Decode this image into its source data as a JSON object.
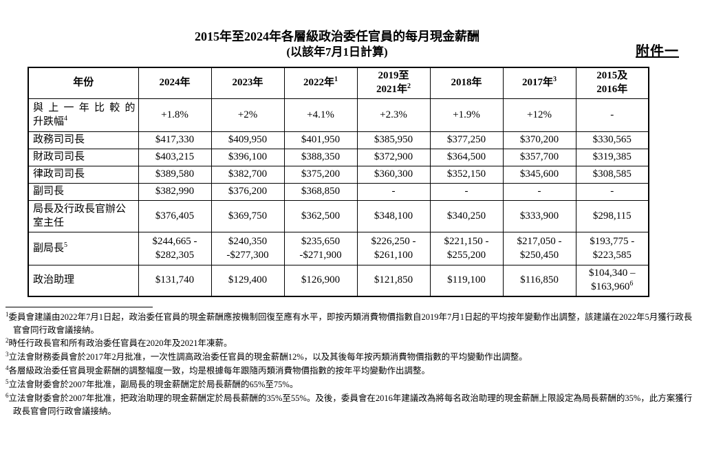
{
  "annex_label": "附件一",
  "title": {
    "line1": "2015年至2024年各層級政治委任官員的每月現金薪酬",
    "line2": "(以該年7月1日計算)"
  },
  "table": {
    "header": [
      {
        "text": "年份",
        "sup": ""
      },
      {
        "text": "2024年",
        "sup": ""
      },
      {
        "text": "2023年",
        "sup": ""
      },
      {
        "text": "2022年",
        "sup": "1"
      },
      {
        "text": "2019至\n2021年",
        "sup": "2"
      },
      {
        "text": "2018年",
        "sup": ""
      },
      {
        "text": "2017年",
        "sup": "3"
      },
      {
        "text": "2015及\n2016年",
        "sup": ""
      }
    ],
    "rows": [
      {
        "label": "與上一年比較的",
        "label2": "升跌幅",
        "label_sup": "4",
        "values": [
          {
            "text": "+1.8%",
            "sup": ""
          },
          {
            "text": "+2%",
            "sup": ""
          },
          {
            "text": "+4.1%",
            "sup": ""
          },
          {
            "text": "+2.3%",
            "sup": ""
          },
          {
            "text": "+1.9%",
            "sup": ""
          },
          {
            "text": "+12%",
            "sup": ""
          },
          {
            "text": "-",
            "sup": ""
          }
        ]
      },
      {
        "label": "政務司司長",
        "label_sup": "",
        "values": [
          {
            "text": "$417,330",
            "sup": ""
          },
          {
            "text": "$409,950",
            "sup": ""
          },
          {
            "text": "$401,950",
            "sup": ""
          },
          {
            "text": "$385,950",
            "sup": ""
          },
          {
            "text": "$377,250",
            "sup": ""
          },
          {
            "text": "$370,200",
            "sup": ""
          },
          {
            "text": "$330,565",
            "sup": ""
          }
        ]
      },
      {
        "label": "財政司司長",
        "label_sup": "",
        "values": [
          {
            "text": "$403,215",
            "sup": ""
          },
          {
            "text": "$396,100",
            "sup": ""
          },
          {
            "text": "$388,350",
            "sup": ""
          },
          {
            "text": "$372,900",
            "sup": ""
          },
          {
            "text": "$364,500",
            "sup": ""
          },
          {
            "text": "$357,700",
            "sup": ""
          },
          {
            "text": "$319,385",
            "sup": ""
          }
        ]
      },
      {
        "label": "律政司司長",
        "label_sup": "",
        "values": [
          {
            "text": "$389,580",
            "sup": ""
          },
          {
            "text": "$382,700",
            "sup": ""
          },
          {
            "text": "$375,200",
            "sup": ""
          },
          {
            "text": "$360,300",
            "sup": ""
          },
          {
            "text": "$352,150",
            "sup": ""
          },
          {
            "text": "$345,600",
            "sup": ""
          },
          {
            "text": "$308,585",
            "sup": ""
          }
        ]
      },
      {
        "label": "副司長",
        "label_sup": "",
        "values": [
          {
            "text": "$382,990",
            "sup": ""
          },
          {
            "text": "$376,200",
            "sup": ""
          },
          {
            "text": "$368,850",
            "sup": ""
          },
          {
            "text": "-",
            "sup": ""
          },
          {
            "text": "-",
            "sup": ""
          },
          {
            "text": "-",
            "sup": ""
          },
          {
            "text": "-",
            "sup": ""
          }
        ]
      },
      {
        "label": "局長及行政長官辦公室主任",
        "label_sup": "",
        "values": [
          {
            "text": "$376,405",
            "sup": ""
          },
          {
            "text": "$369,750",
            "sup": ""
          },
          {
            "text": "$362,500",
            "sup": ""
          },
          {
            "text": "$348,100",
            "sup": ""
          },
          {
            "text": "$340,250",
            "sup": ""
          },
          {
            "text": "$333,900",
            "sup": ""
          },
          {
            "text": "$298,115",
            "sup": ""
          }
        ]
      },
      {
        "label": "副局長",
        "label_sup": "5",
        "values": [
          {
            "text": "$244,665 -\n$282,305",
            "sup": ""
          },
          {
            "text": "$240,350\n-$277,300",
            "sup": ""
          },
          {
            "text": "$235,650\n-$271,900",
            "sup": ""
          },
          {
            "text": "$226,250 -\n$261,100",
            "sup": ""
          },
          {
            "text": "$221,150 -\n$255,200",
            "sup": ""
          },
          {
            "text": "$217,050 -\n$250,450",
            "sup": ""
          },
          {
            "text": "$193,775 -\n$223,585",
            "sup": ""
          }
        ]
      },
      {
        "label": "政治助理",
        "label_sup": "",
        "values": [
          {
            "text": "$131,740",
            "sup": ""
          },
          {
            "text": "$129,400",
            "sup": ""
          },
          {
            "text": "$126,900",
            "sup": ""
          },
          {
            "text": "$121,850",
            "sup": ""
          },
          {
            "text": "$119,100",
            "sup": ""
          },
          {
            "text": "$116,850",
            "sup": ""
          },
          {
            "text": "$104,340 –\n$163,960",
            "sup": "6"
          }
        ]
      }
    ]
  },
  "footnotes": [
    {
      "num": "1",
      "text": "委員會建議由2022年7月1日起，政治委任官員的現金薪酬應按機制回復至應有水平，即按丙類消費物價指數自2019年7月1日起的平均按年變動作出調整，該建議在2022年5月獲行政長官會同行政會議接納。"
    },
    {
      "num": "2",
      "text": "時任行政長官和所有政治委任官員在2020年及2021年凍薪。"
    },
    {
      "num": "3",
      "text": "立法會財務委員會於2017年2月批准，一次性調高政治委任官員的現金薪酬12%，以及其後每年按丙類消費物價指數的平均變動作出調整。"
    },
    {
      "num": "4",
      "text": "各層級政治委任官員現金薪酬的調整幅度一致，均是根據每年跟隨丙類消費物價指數的按年平均變動作出調整。"
    },
    {
      "num": "5",
      "text": "立法會財委會於2007年批准，副局長的現金薪酬定於局長薪酬的65%至75%。"
    },
    {
      "num": "6",
      "text": "立法會財委會於2007年批准，把政治助理的現金薪酬定於局長薪酬的35%至55%。及後，委員會在2016年建議改為將每名政治助理的現金薪酬上限設定為局長薪酬的35%，此方案獲行政長官會同行政會議接納。"
    }
  ]
}
